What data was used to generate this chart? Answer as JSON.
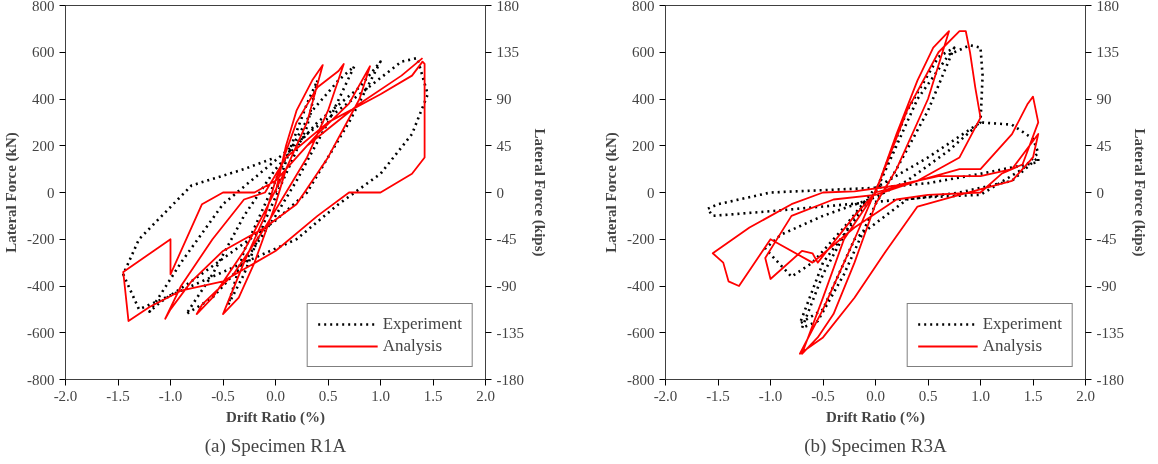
{
  "chart_data": [
    {
      "type": "line",
      "title": "(a) Specimen R1A",
      "xlabel": "Drift Ratio (%)",
      "ylabel": "Lateral Force (kN)",
      "y2label": "Lateral Force (kips)",
      "xlim": [
        -2.0,
        2.0
      ],
      "xticks": [
        {
          "value": -2.0,
          "label": "-2.0"
        },
        {
          "value": -1.5,
          "label": "-1.5"
        },
        {
          "value": -1.0,
          "label": "-1.0"
        },
        {
          "value": -0.5,
          "label": "-0.5"
        },
        {
          "value": 0.0,
          "label": "0.0"
        },
        {
          "value": 0.5,
          "label": "0.5"
        },
        {
          "value": 1.0,
          "label": "1.0"
        },
        {
          "value": 1.5,
          "label": "1.5"
        },
        {
          "value": 2.0,
          "label": "2.0"
        }
      ],
      "ylim": [
        -800,
        800
      ],
      "yticks": [
        -800,
        -600,
        -400,
        -200,
        0,
        200,
        400,
        600,
        800
      ],
      "y2lim": [
        -180,
        180
      ],
      "y2ticks": [
        -180,
        -135,
        -90,
        -45,
        0,
        45,
        90,
        135,
        180
      ],
      "grid": false,
      "legend": "bottom right",
      "series": [
        {
          "name": "Experiment",
          "color": "#000000",
          "line_style": "dotted",
          "x": [
            0,
            0.15,
            0.3,
            0.4,
            0.3,
            0.1,
            -0.1,
            -0.3,
            -0.45,
            -0.3,
            -0.1,
            0.1,
            0.35,
            0.6,
            0.75,
            0.5,
            0.2,
            0,
            -0.3,
            -0.6,
            -0.85,
            -0.6,
            -0.3,
            0,
            0.4,
            0.8,
            1.0,
            0.7,
            0.3,
            0,
            -0.4,
            -0.8,
            -1.1,
            -1.2,
            -0.9,
            -0.5,
            -0.1,
            0.3,
            0.8,
            1.2,
            1.35,
            1.45,
            1.3,
            1.0,
            0.6,
            0.2,
            -0.3,
            -0.8,
            -1.3,
            -1.45,
            -1.3,
            -0.8,
            -0.3,
            0
          ],
          "values": [
            0,
            200,
            380,
            480,
            280,
            80,
            -120,
            -350,
            -480,
            -250,
            -50,
            150,
            350,
            480,
            540,
            300,
            50,
            -100,
            -300,
            -450,
            -520,
            -350,
            -100,
            100,
            300,
            450,
            560,
            300,
            0,
            -120,
            -250,
            -380,
            -470,
            -510,
            -300,
            -50,
            100,
            250,
            420,
            560,
            575,
            420,
            250,
            80,
            -50,
            -200,
            -300,
            -400,
            -500,
            -350,
            -200,
            30,
            100,
            150
          ]
        },
        {
          "name": "Analysis",
          "color": "#ff0000",
          "line_style": "solid",
          "x": [
            0,
            0.1,
            0.2,
            0.35,
            0.45,
            0.3,
            0.1,
            0,
            -0.2,
            -0.35,
            -0.5,
            -0.3,
            -0.1,
            0,
            0.2,
            0.4,
            0.6,
            0.65,
            0.5,
            0.3,
            0.1,
            -0.1,
            -0.4,
            -0.7,
            -0.75,
            -0.6,
            -0.3,
            -0.1,
            0.1,
            0.4,
            0.7,
            0.9,
            0.8,
            0.5,
            0.2,
            -0.1,
            -0.5,
            -0.8,
            -1.0,
            -1.05,
            -0.9,
            -0.6,
            -0.3,
            -0.1,
            0.1,
            0.5,
            1.0,
            1.3,
            1.4,
            1.42,
            1.42,
            1.3,
            1.0,
            0.7,
            0.4,
            0,
            -0.5,
            -0.9,
            -1.2,
            -1.4,
            -1.45,
            -1.0,
            -1.0,
            -0.7,
            -0.5,
            -0.2,
            0,
            0.3,
            0.8,
            1.2,
            1.4
          ],
          "values": [
            0,
            200,
            350,
            480,
            545,
            300,
            100,
            -50,
            -300,
            -450,
            -520,
            -300,
            -100,
            50,
            300,
            450,
            520,
            550,
            350,
            150,
            0,
            -150,
            -350,
            -480,
            -520,
            -450,
            -250,
            -80,
            100,
            250,
            380,
            540,
            400,
            150,
            -50,
            -150,
            -250,
            -380,
            -500,
            -540,
            -400,
            -200,
            -30,
            0,
            150,
            300,
            420,
            500,
            560,
            550,
            150,
            80,
            0,
            0,
            -100,
            -250,
            -380,
            -420,
            -490,
            -550,
            -340,
            -200,
            -350,
            -50,
            0,
            0,
            50,
            200,
            380,
            500,
            575
          ]
        }
      ]
    },
    {
      "type": "line",
      "title": "(b) Specimen R3A",
      "xlabel": "Drift Ratio (%)",
      "ylabel": "Lateral Force (kN)",
      "y2label": "Lateral Force (kips)",
      "xlim": [
        -2.0,
        2.0
      ],
      "xticks": [
        {
          "value": -2.0,
          "label": "-2.0"
        },
        {
          "value": -1.5,
          "label": "-1.5"
        },
        {
          "value": -1.0,
          "label": "-1.0"
        },
        {
          "value": -0.5,
          "label": "-0.5"
        },
        {
          "value": 0.0,
          "label": "0.0"
        },
        {
          "value": 0.5,
          "label": "0.5"
        },
        {
          "value": 1.0,
          "label": "1.0"
        },
        {
          "value": 1.5,
          "label": "1.5"
        },
        {
          "value": 2.0,
          "label": "2.0"
        }
      ],
      "ylim": [
        -800,
        800
      ],
      "yticks": [
        -800,
        -600,
        -400,
        -200,
        0,
        200,
        400,
        600,
        800
      ],
      "y2lim": [
        -180,
        180
      ],
      "y2ticks": [
        -180,
        -135,
        -90,
        -45,
        0,
        45,
        90,
        135,
        180
      ],
      "grid": false,
      "legend": "bottom right",
      "series": [
        {
          "name": "Experiment",
          "color": "#000000",
          "line_style": "dotted",
          "x": [
            0,
            0.3,
            0.6,
            0.75,
            0.5,
            0.2,
            0,
            -0.3,
            -0.55,
            -0.7,
            -0.5,
            -0.2,
            0,
            0.4,
            0.7,
            0.9,
            1.0,
            1.02,
            1.0,
            0.7,
            0.3,
            0,
            -0.5,
            -0.9,
            -1.05,
            -0.8,
            -0.6,
            -0.3,
            0,
            0.5,
            1.0,
            1.3,
            1.5,
            1.55,
            1.4,
            1.0,
            0.5,
            0,
            -0.5,
            -1.0,
            -1.55,
            -1.6,
            -1.5,
            -1.0,
            -0.5,
            0,
            0.5,
            1.0,
            1.55,
            1.55,
            1.3,
            0.8,
            0.3,
            -0.2,
            -0.5,
            -0.72,
            -0.5,
            -0.1
          ],
          "values": [
            0,
            350,
            580,
            620,
            350,
            100,
            -50,
            -350,
            -550,
            -580,
            -350,
            -100,
            0,
            400,
            590,
            630,
            620,
            500,
            300,
            180,
            50,
            -20,
            -100,
            -180,
            -240,
            -360,
            -300,
            -150,
            20,
            150,
            300,
            290,
            230,
            170,
            100,
            -10,
            -20,
            -40,
            -60,
            -80,
            -100,
            -70,
            -50,
            0,
            10,
            20,
            40,
            80,
            130,
            150,
            50,
            0,
            -30,
            -200,
            -500,
            -560,
            -300,
            -60
          ]
        },
        {
          "name": "Analysis",
          "color": "#ff0000",
          "line_style": "solid",
          "x": [
            0,
            0.2,
            0.4,
            0.55,
            0.7,
            0.5,
            0.2,
            0,
            -0.2,
            -0.4,
            -0.55,
            -0.7,
            -0.5,
            -0.3,
            0,
            0.3,
            0.6,
            0.8,
            0.86,
            0.9,
            0.95,
            1.0,
            0.8,
            0.4,
            0,
            -0.4,
            -0.8,
            -1.05,
            -1.0,
            -0.7,
            -0.6,
            -0.55,
            -0.2,
            0,
            0.4,
            0.8,
            1.0,
            1.3,
            1.45,
            1.5,
            1.55,
            1.4,
            1.2,
            1.0,
            0.5,
            0.2,
            -0.2,
            -0.6,
            -1.0,
            -1.3,
            -1.4,
            -1.45,
            -1.55,
            -1.2,
            -0.8,
            -0.5,
            -0.2,
            0.2,
            0.6,
            1.0,
            1.3,
            1.55,
            1.5,
            1.3,
            0.8,
            0.4,
            0.1,
            -0.2,
            -0.5,
            -0.72,
            -0.5,
            -0.2,
            0.05
          ],
          "values": [
            0,
            250,
            480,
            620,
            690,
            400,
            100,
            -50,
            -300,
            -520,
            -620,
            -690,
            -450,
            -200,
            0,
            350,
            600,
            690,
            690,
            600,
            450,
            320,
            150,
            50,
            -10,
            -30,
            -100,
            -280,
            -370,
            -250,
            -260,
            -300,
            -100,
            0,
            50,
            100,
            100,
            250,
            380,
            410,
            300,
            120,
            80,
            0,
            -10,
            -30,
            -150,
            -300,
            -200,
            -400,
            -380,
            -300,
            -260,
            -150,
            -50,
            0,
            5,
            30,
            70,
            70,
            100,
            250,
            150,
            50,
            -10,
            -60,
            -250,
            -450,
            -620,
            -690,
            -500,
            -200,
            60
          ]
        }
      ]
    }
  ]
}
